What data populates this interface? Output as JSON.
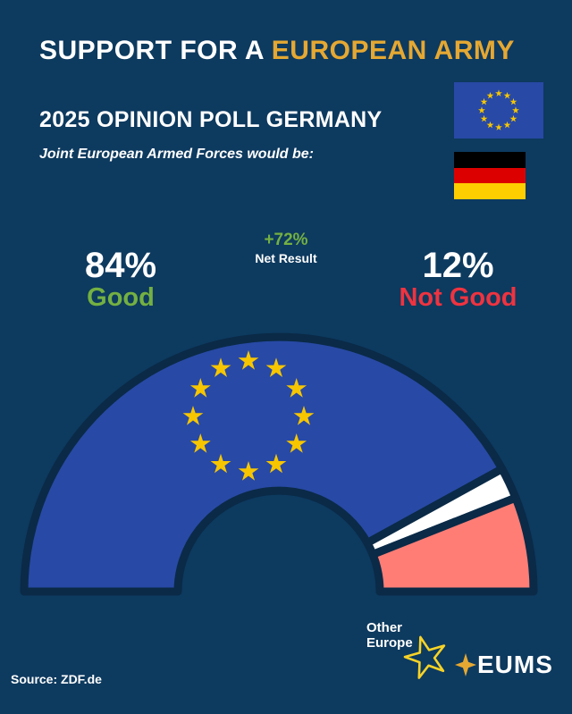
{
  "header": {
    "title_white": "SUPPORT FOR A ",
    "title_gold": "EUROPEAN ARMY",
    "subtitle": "2025 OPINION POLL GERMANY",
    "tagline": "Joint European Armed Forces would be:"
  },
  "flags": {
    "eu": {
      "field": "#2849a5",
      "stars": "#f7c600"
    },
    "germany": {
      "stripes": [
        "#000000",
        "#dd0000",
        "#ffce00"
      ]
    }
  },
  "stats": {
    "good": {
      "value": "84%",
      "label": "Good"
    },
    "net": {
      "value": "+72%",
      "label": "Net Result"
    },
    "not_good": {
      "value": "12%",
      "label": "Not Good"
    }
  },
  "chart_data": {
    "type": "gauge",
    "title": "Joint European Armed Forces would be:",
    "unit": "%",
    "total": 100,
    "segments": [
      {
        "name": "Good",
        "value": 84,
        "color": "#2849a5"
      },
      {
        "name": "Other",
        "value": 4,
        "color": "#ffffff"
      },
      {
        "name": "Not Good",
        "value": 12,
        "color": "#ff7d75"
      }
    ],
    "net_result": "+72%",
    "star_ring": {
      "count": 12,
      "color": "#f7c600"
    },
    "outline_color": "#0a2a47"
  },
  "footer": {
    "source": "Source: ZDF.de",
    "other_europe_line1": "Other",
    "other_europe_line2": "Europe",
    "eums": "EUMS"
  },
  "icons": {
    "other_europe_star": "outline-star",
    "eums_star": "four-point-star"
  },
  "colors": {
    "background": "#0d3a5f",
    "gold": "#e5a832",
    "green": "#74b042",
    "red": "#ef3340",
    "eu_blue": "#2849a5",
    "pink": "#ff7d75",
    "white": "#ffffff"
  }
}
